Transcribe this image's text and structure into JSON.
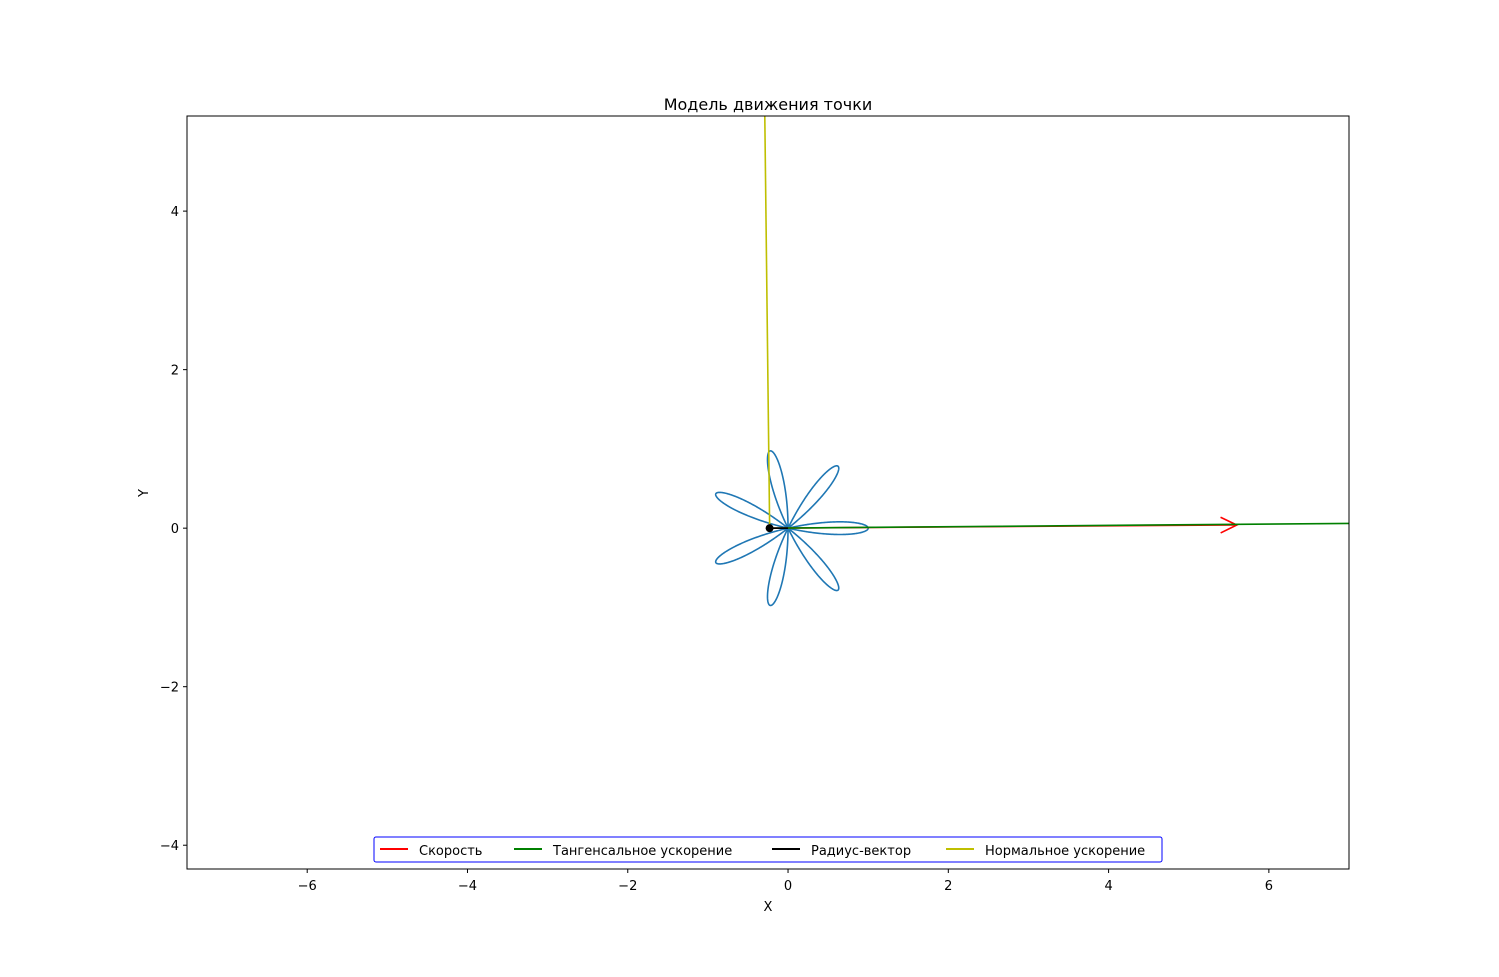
{
  "chart_data": {
    "type": "line",
    "title": "Модель движения точки",
    "xlabel": "X",
    "ylabel": "Y",
    "xlim": [
      -7.5,
      7.0
    ],
    "ylim": [
      -4.3,
      5.2
    ],
    "x_ticks": [
      -6,
      -4,
      -2,
      0,
      2,
      4,
      6
    ],
    "y_ticks": [
      -4,
      -2,
      0,
      2,
      4
    ],
    "x_tick_labels": [
      "−6",
      "−4",
      "−2",
      "0",
      "2",
      "4",
      "6"
    ],
    "y_tick_labels": [
      "−4",
      "−2",
      "0",
      "2",
      "4"
    ],
    "grid": false,
    "legend_position": "lower center",
    "legend": [
      {
        "label": "Скорость",
        "color": "#ff0000"
      },
      {
        "label": "Тангенсальное ускорение",
        "color": "#008000"
      },
      {
        "label": "Радиус-вектор",
        "color": "#000000"
      },
      {
        "label": "Нормальное ускорение",
        "color": "#bfbf00"
      }
    ],
    "trajectory": {
      "color": "#1f77b4",
      "curve": "rose",
      "petals": 14,
      "amplitude": 1.0,
      "phase_deg": 90
    },
    "point": {
      "x": -0.23,
      "y": 0.0,
      "color": "#000000"
    },
    "vectors": [
      {
        "name": "Скорость",
        "color": "#ff0000",
        "from": [
          -0.23,
          0.0
        ],
        "to": [
          5.6,
          0.04
        ],
        "arrowhead": true
      },
      {
        "name": "Тангенсальное ускорение",
        "color": "#008000",
        "from": [
          -0.23,
          0.0
        ],
        "to": [
          7.0,
          0.06
        ]
      },
      {
        "name": "Радиус-вектор",
        "color": "#000000",
        "from": [
          0.0,
          0.0
        ],
        "to": [
          -0.23,
          0.0
        ]
      },
      {
        "name": "Нормальное ускорение",
        "color": "#bfbf00",
        "from": [
          -0.23,
          0.05
        ],
        "to": [
          -0.29,
          5.2
        ]
      }
    ]
  }
}
